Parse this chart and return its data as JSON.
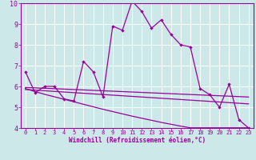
{
  "x": [
    0,
    1,
    2,
    3,
    4,
    5,
    6,
    7,
    8,
    9,
    10,
    11,
    12,
    13,
    14,
    15,
    16,
    17,
    18,
    19,
    20,
    21,
    22,
    23
  ],
  "series1": [
    6.7,
    5.7,
    6.0,
    6.0,
    5.4,
    5.3,
    7.2,
    6.7,
    5.5,
    8.9,
    8.7,
    10.1,
    9.6,
    8.8,
    9.2,
    8.5,
    8.0,
    7.9,
    5.9,
    5.6,
    5.0,
    6.1,
    4.4,
    4.0
  ],
  "line1": [
    5.95,
    5.93,
    5.91,
    5.89,
    5.87,
    5.85,
    5.83,
    5.81,
    5.79,
    5.77,
    5.75,
    5.73,
    5.71,
    5.69,
    5.67,
    5.65,
    5.63,
    5.61,
    5.59,
    5.57,
    5.55,
    5.53,
    5.51,
    5.49
  ],
  "line2": [
    5.85,
    5.82,
    5.79,
    5.76,
    5.73,
    5.7,
    5.67,
    5.64,
    5.61,
    5.58,
    5.55,
    5.52,
    5.49,
    5.46,
    5.43,
    5.4,
    5.37,
    5.34,
    5.31,
    5.28,
    5.25,
    5.22,
    5.19,
    5.16
  ],
  "line3": [
    5.9,
    5.75,
    5.62,
    5.5,
    5.38,
    5.26,
    5.14,
    5.02,
    4.9,
    4.79,
    4.68,
    4.57,
    4.47,
    4.37,
    4.27,
    4.18,
    4.09,
    4.01,
    4.01,
    4.01,
    4.01,
    4.01,
    4.01,
    4.01
  ],
  "color_main": "#990099",
  "bg_color": "#cce8e8",
  "grid_color": "#aacccc",
  "xlabel": "Windchill (Refroidissement éolien,°C)",
  "ylim": [
    4,
    10
  ],
  "xlim_min": -0.5,
  "xlim_max": 23.5,
  "yticks": [
    4,
    5,
    6,
    7,
    8,
    9,
    10
  ],
  "xticks": [
    0,
    1,
    2,
    3,
    4,
    5,
    6,
    7,
    8,
    9,
    10,
    11,
    12,
    13,
    14,
    15,
    16,
    17,
    18,
    19,
    20,
    21,
    22,
    23
  ]
}
